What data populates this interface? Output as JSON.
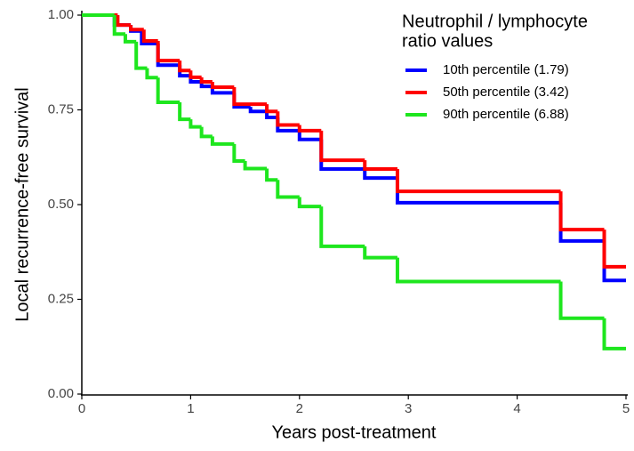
{
  "chart_data": {
    "type": "step",
    "x_label": "Years post-treatment",
    "y_label": "Local recurrence-free survival",
    "legend_title": [
      "Neutrophil / lymphocyte",
      "ratio values"
    ],
    "legend_position": "top-right",
    "xlim": [
      0,
      5
    ],
    "ylim": [
      0,
      1
    ],
    "xticks": [
      0,
      1,
      2,
      3,
      4,
      5
    ],
    "yticks": [
      {
        "value": 0,
        "label": "0.00"
      },
      0.25,
      {
        "value": 0.5,
        "label": "0.50"
      },
      0.75,
      {
        "value": 1,
        "label": "1.00"
      }
    ],
    "series": [
      {
        "name": "10th percentile (1.79)",
        "color": "#0000ff",
        "x": [
          0,
          0.3,
          0.45,
          0.55,
          0.7,
          0.9,
          1.0,
          1.1,
          1.2,
          1.4,
          1.55,
          1.7,
          1.8,
          2.0,
          2.2,
          2.6,
          2.9,
          4.4,
          4.8
        ],
        "values": [
          1.0,
          0.974,
          0.958,
          0.925,
          0.868,
          0.84,
          0.824,
          0.812,
          0.795,
          0.758,
          0.746,
          0.73,
          0.695,
          0.672,
          0.594,
          0.57,
          0.505,
          0.404,
          0.3
        ]
      },
      {
        "name": "50th percentile (3.42)",
        "color": "#ff0000",
        "x": [
          0,
          0.33,
          0.45,
          0.57,
          0.7,
          0.9,
          1.0,
          1.1,
          1.2,
          1.4,
          1.7,
          1.8,
          2.0,
          2.2,
          2.6,
          2.9,
          4.4,
          4.8
        ],
        "values": [
          1.0,
          0.974,
          0.962,
          0.932,
          0.88,
          0.854,
          0.836,
          0.824,
          0.81,
          0.765,
          0.746,
          0.71,
          0.695,
          0.617,
          0.594,
          0.535,
          0.434,
          0.336
        ]
      },
      {
        "name": "90th percentile (6.88)",
        "color": "#1ee61e",
        "x": [
          0,
          0.3,
          0.4,
          0.5,
          0.6,
          0.7,
          0.9,
          1.0,
          1.1,
          1.2,
          1.4,
          1.5,
          1.7,
          1.8,
          2.0,
          2.2,
          2.6,
          2.9,
          4.4,
          4.8
        ],
        "values": [
          1.0,
          0.95,
          0.93,
          0.86,
          0.835,
          0.77,
          0.725,
          0.705,
          0.68,
          0.66,
          0.615,
          0.595,
          0.565,
          0.52,
          0.495,
          0.39,
          0.36,
          0.297,
          0.2,
          0.12
        ]
      }
    ]
  }
}
